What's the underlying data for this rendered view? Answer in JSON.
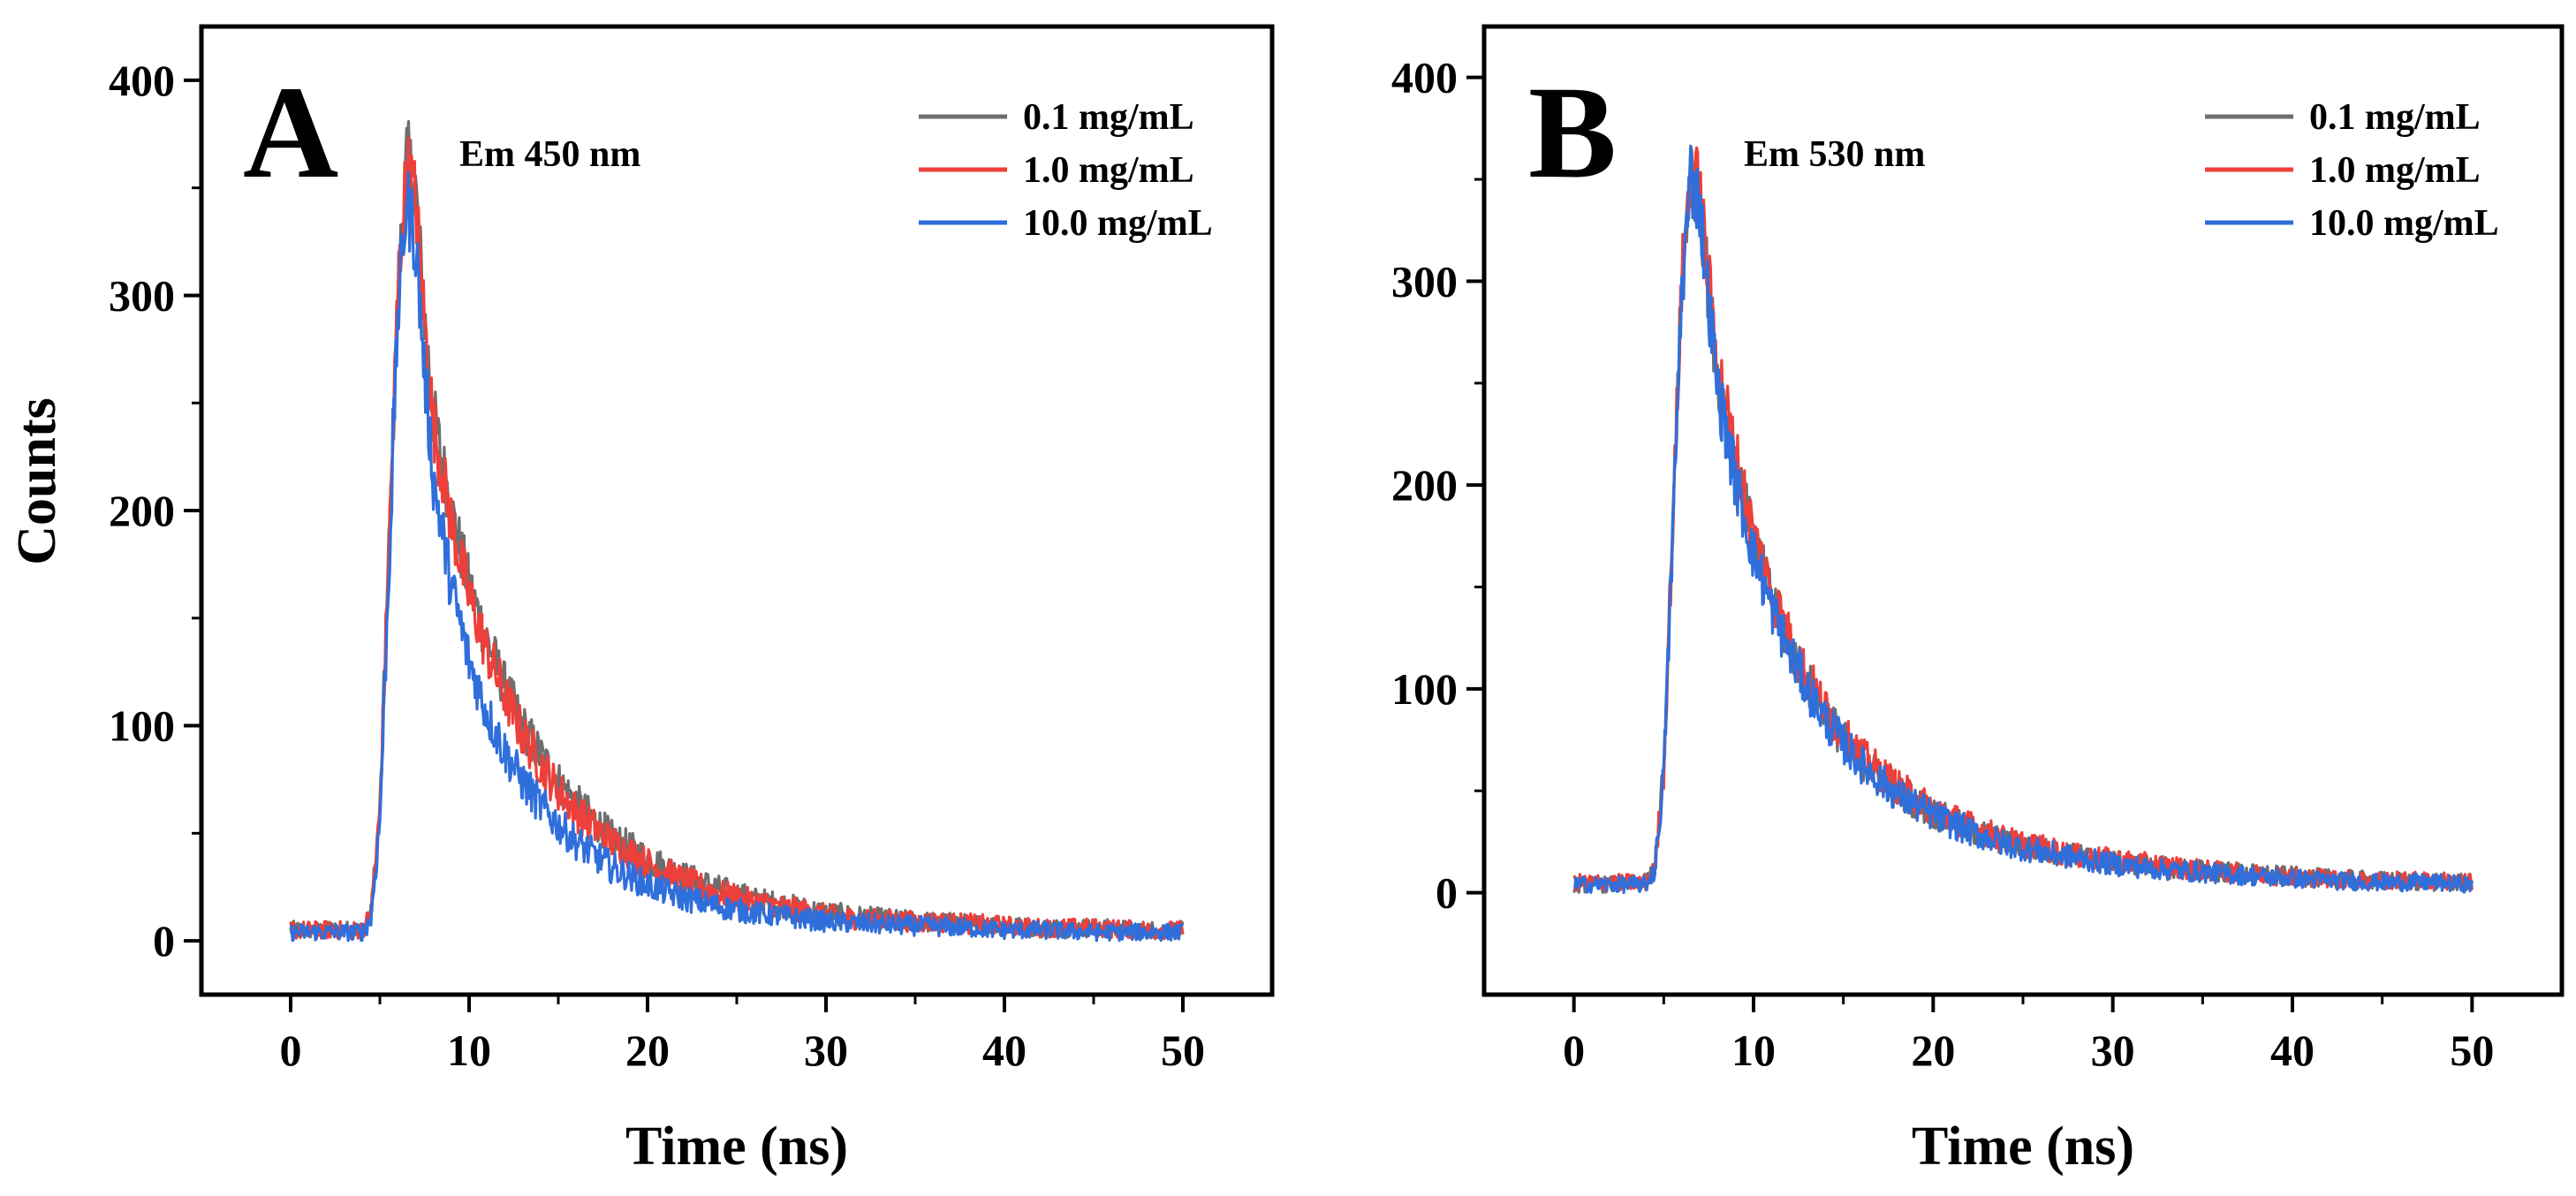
{
  "figure": {
    "ylabel": "Counts"
  },
  "chart_data": [
    {
      "type": "line",
      "panel_label": "A",
      "annotation": "Em 450 nm",
      "title": "",
      "xlabel": "Time (ns)",
      "ylabel": "Counts",
      "xlim": [
        -5,
        55
      ],
      "ylim": [
        -25,
        425
      ],
      "xticks": [
        0,
        10,
        20,
        30,
        40,
        50
      ],
      "yticks": [
        0,
        100,
        200,
        300,
        400
      ],
      "grid": false,
      "legend_position": "top-right",
      "series": [
        {
          "name": "0.1 mg/mL",
          "color": "#6e6e6e",
          "x": [
            0,
            2,
            4,
            4.5,
            5,
            5.5,
            6,
            6.5,
            7,
            7.5,
            8,
            9,
            10,
            11,
            12,
            13,
            14,
            15,
            16,
            18,
            20,
            22,
            24,
            26,
            28,
            30,
            32,
            35,
            38,
            40,
            42,
            45,
            48,
            50
          ],
          "y": [
            5,
            5,
            5,
            12,
            60,
            180,
            300,
            365,
            350,
            290,
            245,
            200,
            165,
            140,
            118,
            100,
            86,
            74,
            64,
            48,
            38,
            30,
            24,
            19,
            16,
            13,
            11,
            9,
            8,
            7,
            6,
            6,
            5,
            5
          ]
        },
        {
          "name": "1.0 mg/mL",
          "color": "#ee3f3a",
          "x": [
            0,
            2,
            4,
            4.5,
            5,
            5.5,
            6,
            6.5,
            7,
            7.5,
            8,
            9,
            10,
            11,
            12,
            13,
            14,
            15,
            16,
            18,
            20,
            22,
            24,
            26,
            28,
            30,
            32,
            35,
            38,
            40,
            42,
            45,
            48,
            50
          ],
          "y": [
            5,
            5,
            5,
            12,
            60,
            180,
            300,
            360,
            345,
            288,
            240,
            195,
            160,
            135,
            114,
            96,
            82,
            70,
            60,
            46,
            36,
            28,
            22,
            18,
            15,
            12,
            10,
            9,
            8,
            7,
            6,
            6,
            5,
            5
          ]
        },
        {
          "name": "10.0 mg/mL",
          "color": "#2f6fdc",
          "x": [
            0,
            2,
            4,
            4.5,
            5,
            5.5,
            6,
            6.5,
            7,
            7.5,
            8,
            9,
            10,
            11,
            12,
            13,
            14,
            15,
            16,
            18,
            20,
            22,
            24,
            26,
            28,
            30,
            32,
            35,
            38,
            40,
            42,
            45,
            48,
            50
          ],
          "y": [
            4,
            4,
            4,
            10,
            55,
            170,
            290,
            345,
            325,
            265,
            215,
            165,
            130,
            106,
            88,
            74,
            63,
            54,
            46,
            34,
            26,
            20,
            16,
            13,
            11,
            9,
            8,
            7,
            6,
            5,
            5,
            4,
            4,
            4
          ]
        }
      ]
    },
    {
      "type": "line",
      "panel_label": "B",
      "annotation": "Em 530 nm",
      "title": "",
      "xlabel": "Time (ns)",
      "ylabel": "",
      "xlim": [
        -5,
        55
      ],
      "ylim": [
        -50,
        425
      ],
      "xticks": [
        0,
        10,
        20,
        30,
        40,
        50
      ],
      "yticks": [
        0,
        100,
        200,
        300,
        400
      ],
      "grid": false,
      "legend_position": "top-right",
      "series": [
        {
          "name": "0.1 mg/mL",
          "color": "#6e6e6e",
          "x": [
            0,
            2,
            4,
            4.5,
            5,
            5.5,
            6,
            6.5,
            7,
            7.5,
            8,
            9,
            10,
            11,
            12,
            13,
            14,
            15,
            16,
            18,
            20,
            22,
            24,
            26,
            28,
            30,
            32,
            35,
            38,
            40,
            42,
            45,
            48,
            50
          ],
          "y": [
            4,
            4,
            5,
            12,
            60,
            180,
            300,
            355,
            340,
            295,
            255,
            210,
            172,
            145,
            122,
            103,
            88,
            75,
            65,
            50,
            39,
            31,
            25,
            21,
            18,
            15,
            13,
            11,
            9,
            8,
            7,
            6,
            5,
            5
          ]
        },
        {
          "name": "1.0 mg/mL",
          "color": "#ee3f3a",
          "x": [
            0,
            2,
            4,
            4.5,
            5,
            5.5,
            6,
            6.5,
            7,
            7.5,
            8,
            9,
            10,
            11,
            12,
            13,
            14,
            15,
            16,
            18,
            20,
            22,
            24,
            26,
            28,
            30,
            32,
            35,
            38,
            40,
            42,
            45,
            48,
            50
          ],
          "y": [
            5,
            5,
            5,
            12,
            60,
            180,
            300,
            355,
            345,
            300,
            260,
            215,
            176,
            148,
            125,
            106,
            90,
            77,
            67,
            52,
            41,
            33,
            26,
            22,
            18,
            16,
            14,
            11,
            9,
            8,
            7,
            6,
            6,
            5
          ]
        },
        {
          "name": "10.0 mg/mL",
          "color": "#2f6fdc",
          "x": [
            0,
            2,
            4,
            4.5,
            5,
            5.5,
            6,
            6.5,
            7,
            7.5,
            8,
            9,
            10,
            11,
            12,
            13,
            14,
            15,
            16,
            18,
            20,
            22,
            24,
            26,
            28,
            30,
            32,
            35,
            38,
            40,
            42,
            45,
            48,
            50
          ],
          "y": [
            4,
            4,
            4,
            11,
            58,
            175,
            295,
            352,
            338,
            290,
            248,
            202,
            166,
            140,
            118,
            100,
            85,
            73,
            63,
            48,
            38,
            30,
            24,
            20,
            17,
            14,
            12,
            10,
            8,
            7,
            6,
            5,
            5,
            4
          ]
        }
      ]
    }
  ]
}
